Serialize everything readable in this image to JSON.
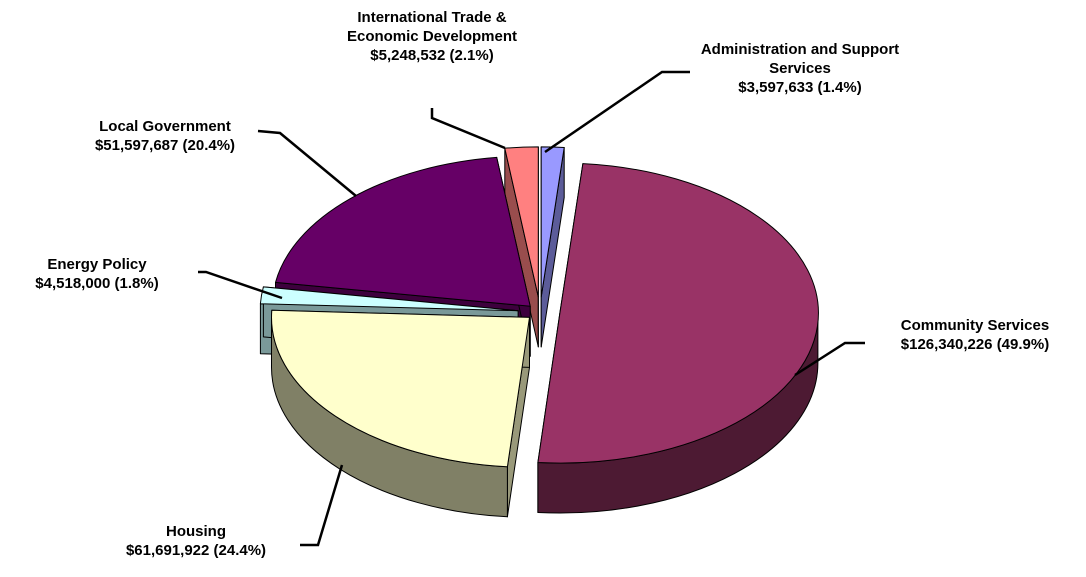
{
  "chart_data": {
    "type": "pie3d",
    "categories": [
      "Administration and Support Services",
      "Community Services",
      "Housing",
      "Energy Policy",
      "Local Government",
      "International Trade & Economic Development"
    ],
    "values": [
      3597633,
      126340226,
      61691922,
      4518000,
      51597687,
      5248532
    ],
    "value_labels": [
      "$3,597,633 (1.4%)",
      "$126,340,226 (49.9%)",
      "$61,691,922 (24.4%)",
      "$4,518,000 (1.8%)",
      "$51,597,687 (20.4%)",
      "$5,248,532 (2.1%)"
    ],
    "colors": [
      "#9999ff",
      "#993366",
      "#ffffcc",
      "#ccffff",
      "#660066",
      "#ff8080"
    ]
  }
}
